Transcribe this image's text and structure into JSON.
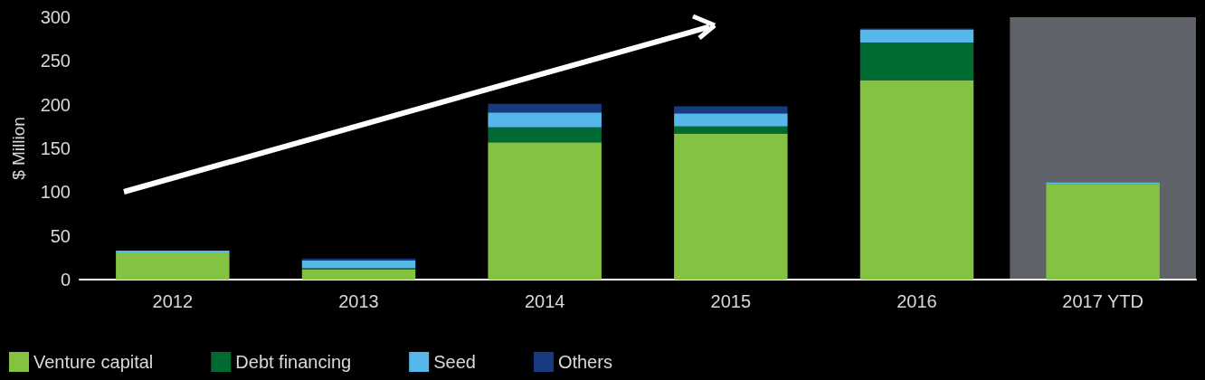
{
  "chart_data": {
    "type": "bar",
    "stacked": true,
    "ylabel": "$ Million",
    "categories": [
      "2012",
      "2013",
      "2014",
      "2015",
      "2016",
      "2017 YTD"
    ],
    "series": [
      {
        "name": "Venture capital",
        "color": "#84c341",
        "values": [
          31,
          12,
          157,
          167,
          228,
          109
        ]
      },
      {
        "name": "Debt financing",
        "color": "#006a33",
        "values": [
          0,
          1,
          17,
          8,
          43,
          0
        ]
      },
      {
        "name": "Seed",
        "color": "#55b8e8",
        "values": [
          2,
          9,
          17,
          15,
          15,
          2
        ]
      },
      {
        "name": "Others",
        "color": "#173a80",
        "values": [
          0,
          2,
          10,
          8,
          1,
          0
        ]
      }
    ],
    "ylim": [
      0,
      300
    ],
    "yticks": [
      0,
      50,
      100,
      150,
      200,
      250,
      300
    ],
    "grid": false,
    "legend": "bottom left",
    "bands": [
      {
        "axis": "x",
        "from": "2017 YTD",
        "to": "2017 YTD",
        "color": "#5f6369"
      }
    ]
  }
}
